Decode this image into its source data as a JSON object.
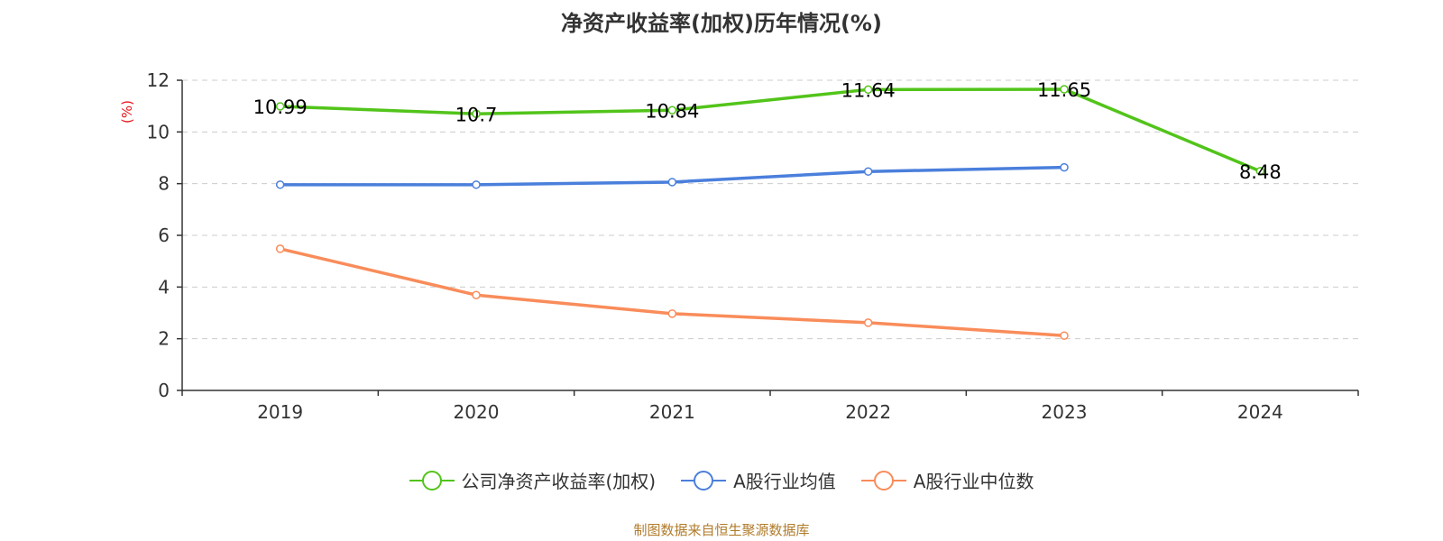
{
  "title": "净资产收益率(加权)历年情况(%)",
  "unit_label": "(%)",
  "footer": "制图数据来自恒生聚源数据库",
  "colors": {
    "title": "#333333",
    "unit": "#e8161a",
    "footer": "#b07b2a",
    "grid": "#cccccc",
    "axis": "#333333"
  },
  "chart_data": {
    "type": "line",
    "title": "净资产收益率(加权)历年情况(%)",
    "ylabel": "(%)",
    "xlabel": "",
    "categories": [
      "2019",
      "2020",
      "2021",
      "2022",
      "2023",
      "2024"
    ],
    "ylim": [
      0,
      12
    ],
    "yticks": [
      0,
      2,
      4,
      6,
      8,
      10,
      12
    ],
    "grid": true,
    "legend_position": "bottom",
    "series": [
      {
        "name": "公司净资产收益率(加权)",
        "color": "#52c41a",
        "values": [
          10.99,
          10.7,
          10.84,
          11.64,
          11.65,
          8.48
        ],
        "labels": [
          "10.99",
          "10.7",
          "10.84",
          "11.64",
          "11.65",
          "8.48"
        ],
        "show_labels": true
      },
      {
        "name": "A股行业均值",
        "color": "#4a7fdc",
        "values": [
          7.96,
          7.96,
          8.06,
          8.47,
          8.63,
          null
        ],
        "show_labels": false
      },
      {
        "name": "A股行业中位数",
        "color": "#f98c5a",
        "values": [
          5.48,
          3.69,
          2.97,
          2.62,
          2.12,
          null
        ],
        "show_labels": false
      }
    ]
  }
}
